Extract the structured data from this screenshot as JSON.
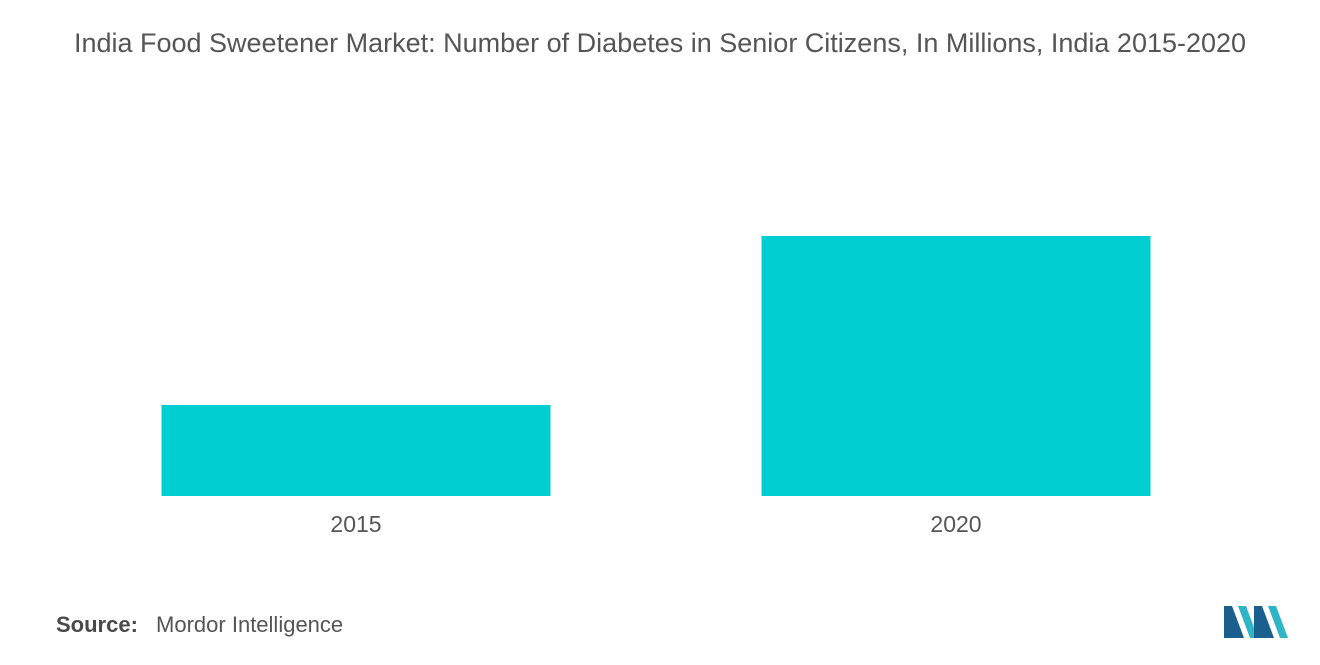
{
  "chart_data": {
    "type": "bar",
    "title": "India Food Sweetener Market: Number of Diabetes in Senior Citizens, In Millions, India 2015-2020",
    "categories": [
      "2015",
      "2020"
    ],
    "values": [
      3.5,
      10
    ],
    "xlabel": "",
    "ylabel": "",
    "ylim": [
      0,
      12
    ],
    "grid": false,
    "legend": "none",
    "bar_color": "#00CED1"
  },
  "footer": {
    "source_label": "Source:",
    "source_value": "Mordor Intelligence"
  },
  "logo": {
    "icon": "mordor-intelligence-logo-icon",
    "colors": [
      "#1B5F8F",
      "#2FB5C5"
    ]
  }
}
